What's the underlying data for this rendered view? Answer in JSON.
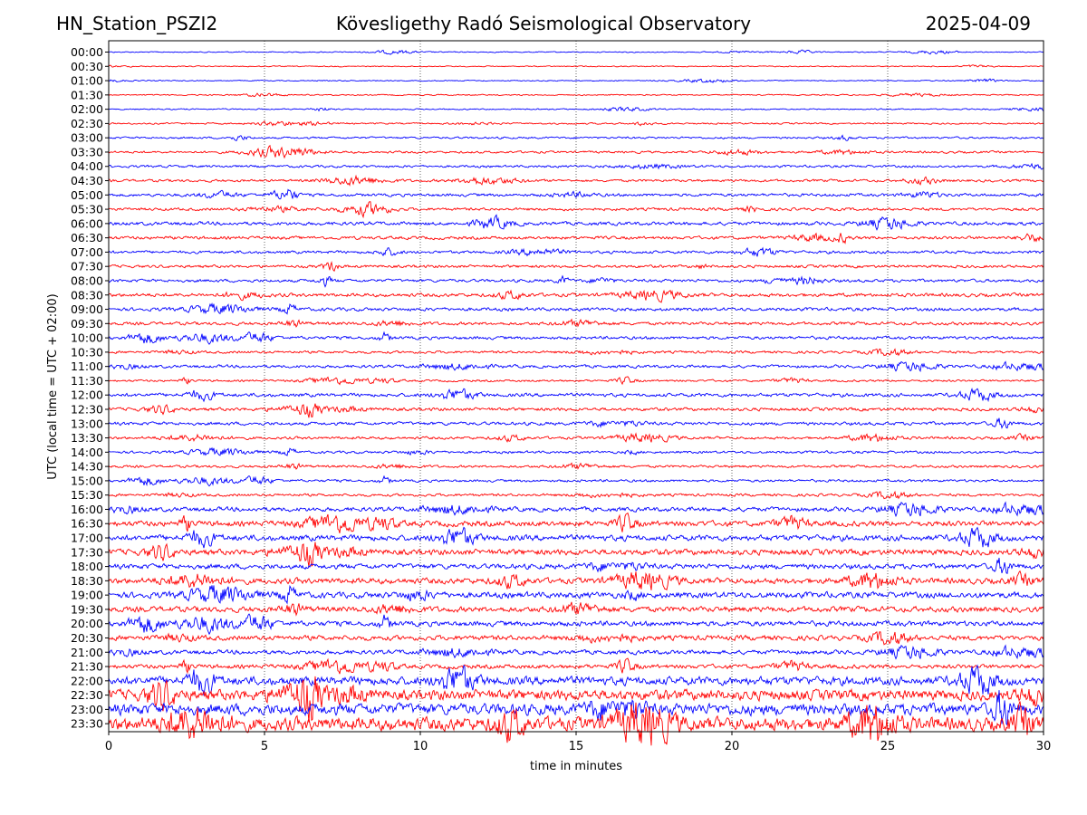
{
  "header": {
    "station": "HN_Station_PSZI2",
    "observatory": "Kövesligethy Radó Seismological Observatory",
    "date": "2025-04-09"
  },
  "chart_data": {
    "type": "line",
    "title": "Kövesligethy Radó Seismological Observatory",
    "xlabel": "time in minutes",
    "ylabel": "UTC (local time = UTC + 02:00)",
    "xlim": [
      0,
      30
    ],
    "xticks": [
      0,
      5,
      10,
      15,
      20,
      25,
      30
    ],
    "grid_x": true,
    "row_labels": [
      "00:00",
      "00:30",
      "01:00",
      "01:30",
      "02:00",
      "02:30",
      "03:00",
      "03:30",
      "04:00",
      "04:30",
      "05:00",
      "05:30",
      "06:00",
      "06:30",
      "07:00",
      "07:30",
      "08:00",
      "08:30",
      "09:00",
      "09:30",
      "10:00",
      "10:30",
      "11:00",
      "11:30",
      "12:00",
      "12:30",
      "13:00",
      "13:30",
      "14:00",
      "14:30",
      "15:00",
      "15:30",
      "16:00",
      "16:30",
      "17:00",
      "17:30",
      "18:00",
      "18:30",
      "19:00",
      "19:30",
      "20:00",
      "20:30",
      "21:00",
      "21:30",
      "22:00",
      "22:30",
      "23:00",
      "23:30"
    ],
    "series_colors": [
      "#0000ff",
      "#ff0000"
    ],
    "relative_noise_level": [
      0.15,
      0.15,
      0.15,
      0.18,
      0.18,
      0.22,
      0.28,
      0.32,
      0.34,
      0.36,
      0.42,
      0.4,
      0.5,
      0.44,
      0.4,
      0.4,
      0.42,
      0.5,
      0.48,
      0.44,
      0.44,
      0.36,
      0.42,
      0.3,
      0.5,
      0.46,
      0.46,
      0.38,
      0.36,
      0.36,
      0.36,
      0.38,
      0.62,
      0.78,
      0.82,
      0.82,
      0.72,
      0.82,
      0.86,
      0.78,
      0.72,
      0.7,
      0.6,
      0.6,
      1.2,
      1.5,
      1.6,
      1.9
    ]
  }
}
